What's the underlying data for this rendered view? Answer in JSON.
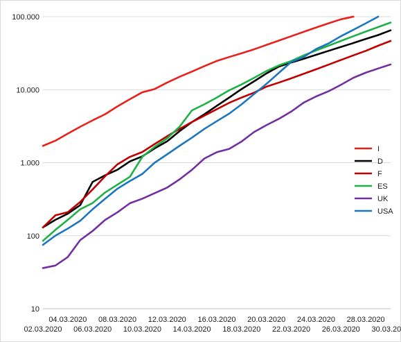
{
  "chart_data": {
    "type": "line",
    "title": "",
    "xlabel": "",
    "ylabel": "",
    "y_scale": "log",
    "ylim": [
      10,
      100000
    ],
    "y_ticks": [
      {
        "value": 10,
        "label": "10"
      },
      {
        "value": 100,
        "label": "100"
      },
      {
        "value": 1000,
        "label": "1.000"
      },
      {
        "value": 10000,
        "label": "10.000"
      },
      {
        "value": 100000,
        "label": "100.000"
      }
    ],
    "x_categories": [
      "02.03.2020",
      "03.03.2020",
      "04.03.2020",
      "05.03.2020",
      "06.03.2020",
      "07.03.2020",
      "08.03.2020",
      "09.03.2020",
      "10.03.2020",
      "11.03.2020",
      "12.03.2020",
      "13.03.2020",
      "14.03.2020",
      "15.03.2020",
      "16.03.2020",
      "17.03.2020",
      "18.03.2020",
      "19.03.2020",
      "20.03.2020",
      "21.03.2020",
      "22.03.2020",
      "23.03.2020",
      "24.03.2020",
      "25.03.2020",
      "26.03.2020",
      "27.03.2020",
      "28.03.2020",
      "29.03.2020",
      "30.03.2020"
    ],
    "x_tick_labels_lower": [
      "02.03.2020",
      "06.03.2020",
      "10.03.2020",
      "14.03.2020",
      "18.03.2020",
      "22.03.2020",
      "26.03.2020",
      "30.03.2020"
    ],
    "x_tick_labels_upper": [
      "04.03.2020",
      "08.03.2020",
      "12.03.2020",
      "16.03.2020",
      "20.03.2020",
      "24.03.2020",
      "28.03.2020"
    ],
    "grid": {
      "horizontal": true,
      "vertical": false
    },
    "legend_position": "right",
    "series": [
      {
        "name": "I",
        "color": "#e8211b",
        "values": [
          1700,
          2000,
          2500,
          3100,
          3800,
          4600,
          5900,
          7400,
          9200,
          10200,
          12500,
          15000,
          17700,
          21000,
          24700,
          28000,
          31500,
          35700,
          41000,
          47000,
          54000,
          62000,
          71000,
          81000,
          92000,
          100000,
          null,
          null,
          null
        ]
      },
      {
        "name": "D",
        "color": "#000000",
        "values": [
          130,
          165,
          200,
          262,
          545,
          670,
          800,
          1040,
          1220,
          1570,
          1960,
          2700,
          3600,
          4600,
          6000,
          7800,
          10200,
          13000,
          16700,
          20700,
          23500,
          26500,
          30000,
          34000,
          38500,
          43500,
          49500,
          56000,
          65000
        ]
      },
      {
        "name": "F",
        "color": "#c00000",
        "values": [
          130,
          190,
          210,
          290,
          430,
          650,
          950,
          1200,
          1400,
          1800,
          2300,
          2900,
          3600,
          4400,
          5400,
          6600,
          7800,
          9100,
          11000,
          12500,
          14300,
          16500,
          19000,
          22000,
          25500,
          29500,
          34000,
          40000,
          46500
        ]
      },
      {
        "name": "ES",
        "color": "#1db045",
        "values": [
          85,
          120,
          165,
          230,
          280,
          390,
          500,
          640,
          1200,
          1650,
          2150,
          3100,
          5200,
          6300,
          7800,
          9800,
          11800,
          14500,
          18000,
          21500,
          24700,
          29500,
          34500,
          40000,
          46500,
          54000,
          62500,
          72000,
          83000
        ]
      },
      {
        "name": "UK",
        "color": "#7030a0",
        "values": [
          36,
          39,
          51,
          87,
          116,
          164,
          209,
          278,
          321,
          382,
          456,
          590,
          798,
          1140,
          1391,
          1543,
          1950,
          2626,
          3269,
          3983,
          5018,
          6650,
          8077,
          9500,
          11658,
          14543,
          17089,
          19522,
          22141
        ]
      },
      {
        "name": "USA",
        "color": "#1b76c0",
        "values": [
          75,
          100,
          125,
          160,
          230,
          320,
          440,
          560,
          700,
          1000,
          1300,
          1700,
          2200,
          2900,
          3700,
          4700,
          6300,
          8700,
          12000,
          17000,
          24000,
          28000,
          36000,
          43000,
          54000,
          66000,
          81000,
          100000,
          null
        ]
      }
    ]
  }
}
